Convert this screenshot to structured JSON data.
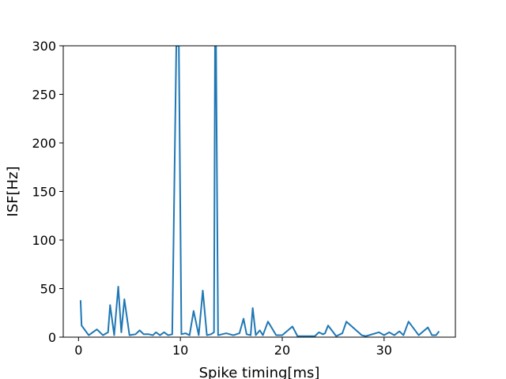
{
  "chart_data": {
    "type": "line",
    "title": "",
    "xlabel": "Spike timing[ms]",
    "ylabel": "ISF[Hz]",
    "xlim": [
      -1.5,
      37
    ],
    "ylim": [
      0,
      300
    ],
    "xticks": [
      0,
      10,
      20,
      30
    ],
    "yticks": [
      0,
      50,
      100,
      150,
      200,
      250,
      300
    ],
    "xtick_labels": [
      "0",
      "10",
      "20",
      "30"
    ],
    "ytick_labels": [
      "0",
      "50",
      "100",
      "150",
      "200",
      "250",
      "300"
    ],
    "grid": false,
    "colors": {
      "line": "#1f77b4"
    },
    "series": [
      {
        "x": [
          0.2,
          0.3,
          1.0,
          1.8,
          2.4,
          2.9,
          3.1,
          3.5,
          3.9,
          4.2,
          4.5,
          5.0,
          5.6,
          6.0,
          6.4,
          6.9,
          7.3,
          7.6,
          8.0,
          8.4,
          8.8,
          9.2,
          9.6,
          9.85,
          10.1,
          10.5,
          10.9,
          11.3,
          11.8,
          12.2,
          12.6,
          13.0,
          13.3,
          13.4,
          13.5,
          13.7,
          14.5,
          15.2,
          15.8,
          16.2,
          16.5,
          16.9,
          17.1,
          17.4,
          17.8,
          18.1,
          18.6,
          19.4,
          20.0,
          21.0,
          21.5,
          22.5,
          23.2,
          23.6,
          24.0,
          24.2,
          24.5,
          25.3,
          25.9,
          26.3,
          27.8,
          28.2,
          29.5,
          30.0,
          30.5,
          31.0,
          31.5,
          31.9,
          32.4,
          33.4,
          34.3,
          34.7,
          35.1,
          35.4
        ],
        "y": [
          38,
          12,
          2,
          8,
          2,
          5,
          33,
          2,
          52,
          5,
          39,
          2,
          3,
          7,
          3,
          3,
          2,
          5,
          2,
          5,
          2,
          3,
          300,
          300,
          3,
          4,
          2,
          27,
          2,
          48,
          2,
          3,
          5,
          300,
          300,
          2,
          4,
          2,
          4,
          19,
          3,
          2,
          30,
          2,
          7,
          2,
          16,
          2,
          2,
          11,
          1,
          1,
          1,
          5,
          3,
          4,
          12,
          1,
          4,
          16,
          2,
          1,
          5,
          2,
          5,
          2,
          6,
          2,
          16,
          2,
          10,
          2,
          2,
          6
        ]
      }
    ]
  }
}
